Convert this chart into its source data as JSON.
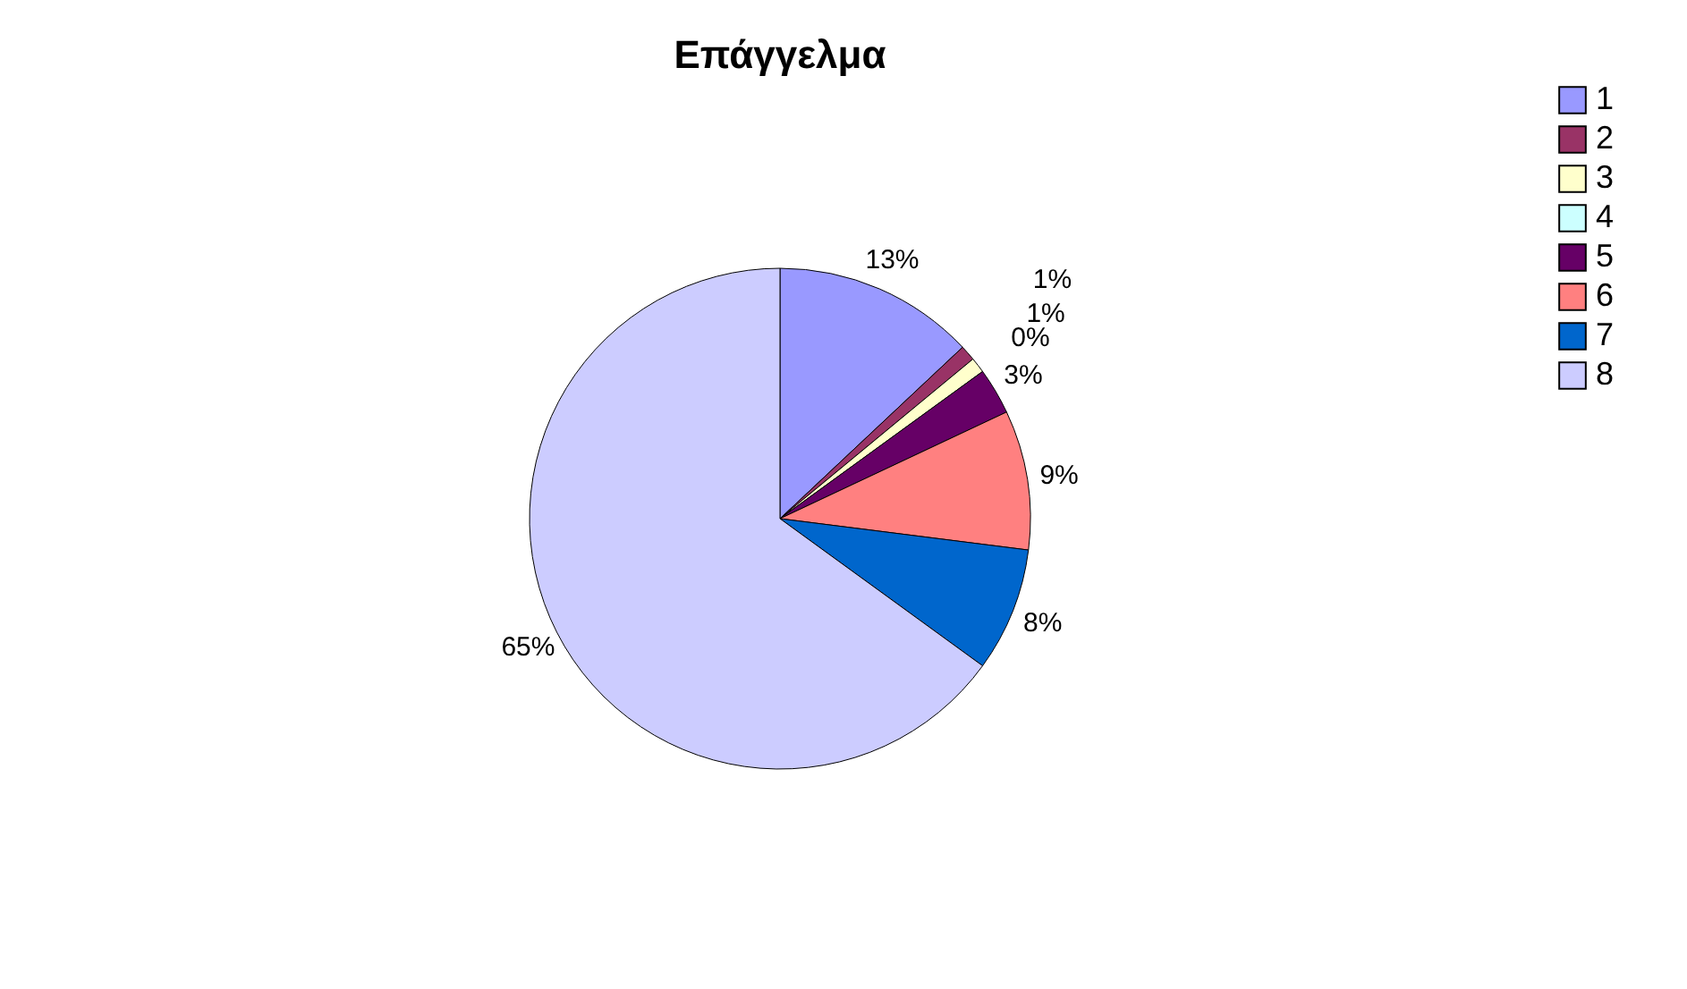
{
  "chart_data": {
    "type": "pie",
    "title": "Επάγγελμα",
    "categories": [
      "1",
      "2",
      "3",
      "4",
      "5",
      "6",
      "7",
      "8"
    ],
    "values": [
      13,
      1,
      1,
      0,
      3,
      9,
      8,
      65
    ],
    "value_labels": [
      "13%",
      "1%",
      "1%",
      "0%",
      "3%",
      "9%",
      "8%",
      "65%"
    ],
    "colors": [
      "#9999ff",
      "#993366",
      "#ffffcc",
      "#ccffff",
      "#660066",
      "#ff8080",
      "#0066cc",
      "#ccccff"
    ],
    "legend": "right"
  }
}
